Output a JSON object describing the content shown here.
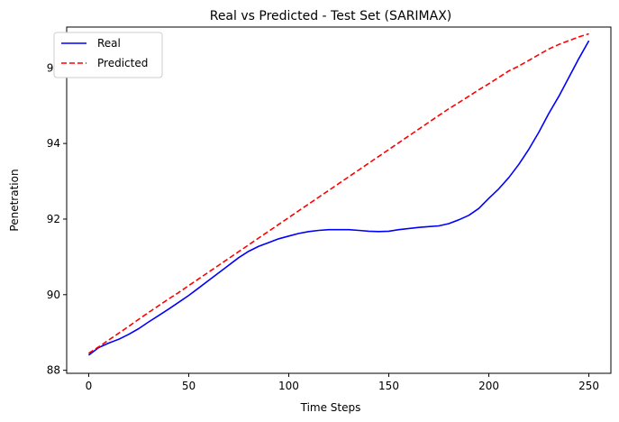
{
  "chart_data": {
    "type": "line",
    "title": "Real vs Predicted - Test Set (SARIMAX)",
    "xlabel": "Time Steps",
    "ylabel": "Penetration",
    "xlim": [
      -11,
      261
    ],
    "ylim": [
      87.92,
      97.08
    ],
    "xticks": [
      0,
      50,
      100,
      150,
      200,
      250
    ],
    "yticks": [
      88,
      90,
      92,
      94,
      96
    ],
    "xtick_labels": [
      "0",
      "50",
      "100",
      "150",
      "200",
      "250"
    ],
    "ytick_labels": [
      "88",
      "90",
      "92",
      "94",
      "96"
    ],
    "grid": false,
    "legend": "top-left",
    "series": [
      {
        "name": "Real",
        "color": "#0000ff",
        "style": "solid",
        "x": [
          0,
          5,
          10,
          15,
          20,
          25,
          30,
          35,
          40,
          45,
          50,
          55,
          60,
          65,
          70,
          75,
          80,
          85,
          90,
          95,
          100,
          105,
          110,
          115,
          120,
          125,
          130,
          135,
          140,
          145,
          150,
          155,
          160,
          165,
          170,
          175,
          180,
          185,
          190,
          195,
          200,
          205,
          210,
          215,
          220,
          225,
          230,
          235,
          240,
          245,
          250
        ],
        "y": [
          88.4,
          88.6,
          88.72,
          88.82,
          88.95,
          89.1,
          89.28,
          89.45,
          89.62,
          89.8,
          89.98,
          90.18,
          90.38,
          90.58,
          90.78,
          90.98,
          91.15,
          91.28,
          91.38,
          91.48,
          91.55,
          91.62,
          91.67,
          91.7,
          91.72,
          91.72,
          91.72,
          91.7,
          91.68,
          91.67,
          91.68,
          91.72,
          91.75,
          91.78,
          91.8,
          91.82,
          91.88,
          91.98,
          92.1,
          92.28,
          92.55,
          92.8,
          93.1,
          93.45,
          93.85,
          94.3,
          94.8,
          95.25,
          95.75,
          96.25,
          96.72
        ]
      },
      {
        "name": "Predicted",
        "color": "#ff0000",
        "style": "dashed",
        "x": [
          0,
          5,
          10,
          15,
          20,
          25,
          30,
          35,
          40,
          45,
          50,
          55,
          60,
          65,
          70,
          75,
          80,
          85,
          90,
          95,
          100,
          105,
          110,
          115,
          120,
          125,
          130,
          135,
          140,
          145,
          150,
          155,
          160,
          165,
          170,
          175,
          180,
          185,
          190,
          195,
          200,
          205,
          210,
          215,
          220,
          225,
          230,
          235,
          240,
          245,
          250
        ],
        "y": [
          88.45,
          88.62,
          88.8,
          88.98,
          89.16,
          89.35,
          89.53,
          89.71,
          89.89,
          90.06,
          90.24,
          90.42,
          90.6,
          90.78,
          90.96,
          91.14,
          91.32,
          91.5,
          91.68,
          91.86,
          92.04,
          92.22,
          92.4,
          92.58,
          92.76,
          92.94,
          93.12,
          93.3,
          93.48,
          93.66,
          93.84,
          94.02,
          94.2,
          94.38,
          94.56,
          94.74,
          94.92,
          95.08,
          95.25,
          95.42,
          95.58,
          95.75,
          95.92,
          96.05,
          96.2,
          96.35,
          96.5,
          96.62,
          96.72,
          96.82,
          96.9
        ]
      }
    ]
  }
}
